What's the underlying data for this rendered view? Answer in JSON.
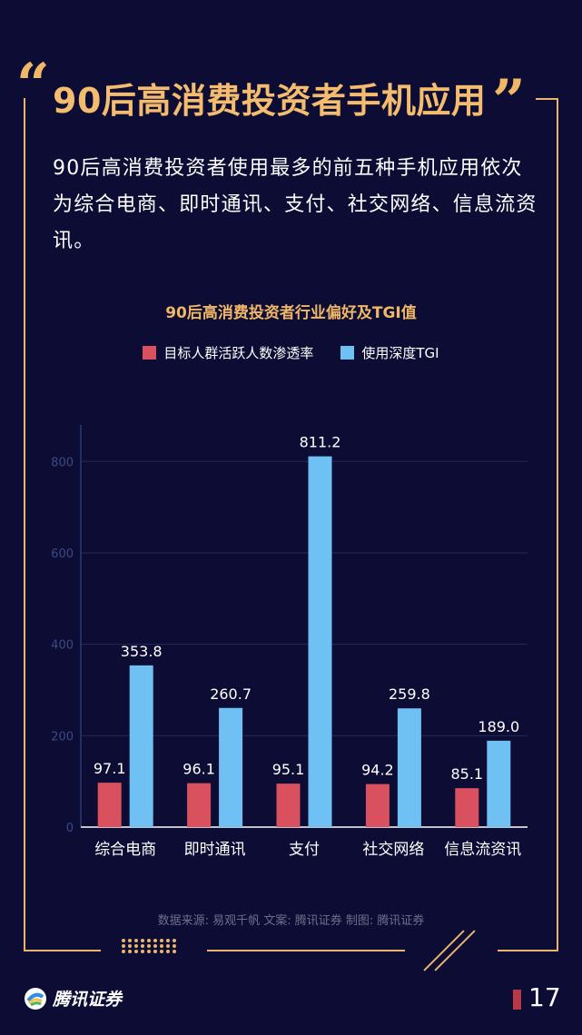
{
  "header": {
    "title": "90后高消费投资者手机应用",
    "intro": "90后高消费投资者使用最多的前五种手机应用依次为综合电商、即时通讯、支付、社交网络、信息流资讯。"
  },
  "colors": {
    "accent": "#f0b766",
    "series_penetration": "#d9505f",
    "series_tgi": "#6fc0f3",
    "background": "#0d0c35"
  },
  "chart_data": {
    "type": "bar",
    "title": "90后高消费投资者行业偏好及TGI值",
    "categories": [
      "综合电商",
      "即时通讯",
      "支付",
      "社交网络",
      "信息流资讯"
    ],
    "series": [
      {
        "name": "目标人群活跃人数渗透率",
        "values": [
          97.1,
          96.1,
          95.1,
          94.2,
          85.1
        ]
      },
      {
        "name": "使用深度TGI",
        "values": [
          353.8,
          260.7,
          811.2,
          259.8,
          189.0
        ]
      }
    ],
    "value_labels": [
      [
        "97.1",
        "96.1",
        "95.1",
        "94.2",
        "85.1"
      ],
      [
        "353.8",
        "260.7",
        "811.2",
        "259.8",
        "189.0"
      ]
    ],
    "y_ticks": [
      "0",
      "200",
      "400",
      "600",
      "800"
    ],
    "ylim": [
      0,
      880
    ],
    "grid": true,
    "legend_position": "top"
  },
  "footer": {
    "source": "数据来源: 易观千帆 文案: 腾讯证券 制图: 腾讯证券",
    "logo_text": "腾讯证券",
    "page_number": "17"
  }
}
